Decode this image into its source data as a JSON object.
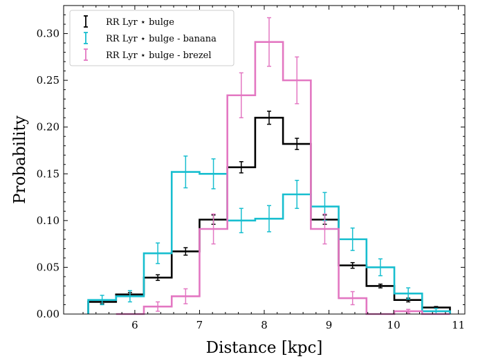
{
  "chart_data": {
    "type": "step",
    "xlabel": "Distance [kpc]",
    "ylabel": "Probability",
    "xlim": [
      4.9,
      11.1
    ],
    "ylim": [
      0,
      0.33
    ],
    "xticks": [
      "6",
      "7",
      "8",
      "9",
      "10",
      "11"
    ],
    "yticks": [
      "0.00",
      "0.05",
      "0.10",
      "0.15",
      "0.20",
      "0.25",
      "0.30"
    ],
    "bin_edges": [
      5.28,
      5.71,
      6.14,
      6.57,
      7.0,
      7.43,
      7.86,
      8.29,
      8.72,
      9.15,
      9.58,
      10.01,
      10.44,
      10.87
    ],
    "grid": false,
    "legend_position": "top-left",
    "series": [
      {
        "name": "RR Lyr ⋆ bulge",
        "color": "#000000",
        "x": [
          5.495,
          5.925,
          6.355,
          6.785,
          7.215,
          7.645,
          8.075,
          8.505,
          8.935,
          9.365,
          9.795,
          10.225,
          10.655
        ],
        "values": [
          0.013,
          0.021,
          0.039,
          0.067,
          0.101,
          0.157,
          0.21,
          0.182,
          0.101,
          0.052,
          0.03,
          0.015,
          0.007
        ],
        "errors": [
          0.002,
          0.002,
          0.003,
          0.004,
          0.005,
          0.006,
          0.007,
          0.006,
          0.005,
          0.003,
          0.002,
          0.002,
          0.001
        ]
      },
      {
        "name": "RR Lyr ⋆ bulge - banana",
        "color": "#17becf",
        "x": [
          5.495,
          5.925,
          6.355,
          6.785,
          7.215,
          7.645,
          8.075,
          8.505,
          8.935,
          9.365,
          9.795,
          10.225,
          10.655
        ],
        "values": [
          0.015,
          0.019,
          0.065,
          0.152,
          0.15,
          0.1,
          0.102,
          0.128,
          0.115,
          0.08,
          0.05,
          0.022,
          0.003
        ],
        "errors": [
          0.005,
          0.006,
          0.011,
          0.017,
          0.016,
          0.013,
          0.014,
          0.015,
          0.015,
          0.012,
          0.009,
          0.006,
          0.003
        ]
      },
      {
        "name": "RR Lyr ⋆ bulge - brezel",
        "color": "#e377c2",
        "x": [
          5.925,
          6.355,
          6.785,
          7.215,
          7.645,
          8.075,
          8.505,
          8.935,
          9.365,
          9.795,
          10.225,
          10.655
        ],
        "values": [
          0.0,
          0.008,
          0.019,
          0.091,
          0.234,
          0.291,
          0.25,
          0.091,
          0.017,
          0.0,
          0.003,
          0.0
        ],
        "errors": [
          0.0,
          0.005,
          0.008,
          0.016,
          0.024,
          0.026,
          0.025,
          0.016,
          0.007,
          0.0,
          0.002,
          0.0
        ]
      }
    ]
  }
}
